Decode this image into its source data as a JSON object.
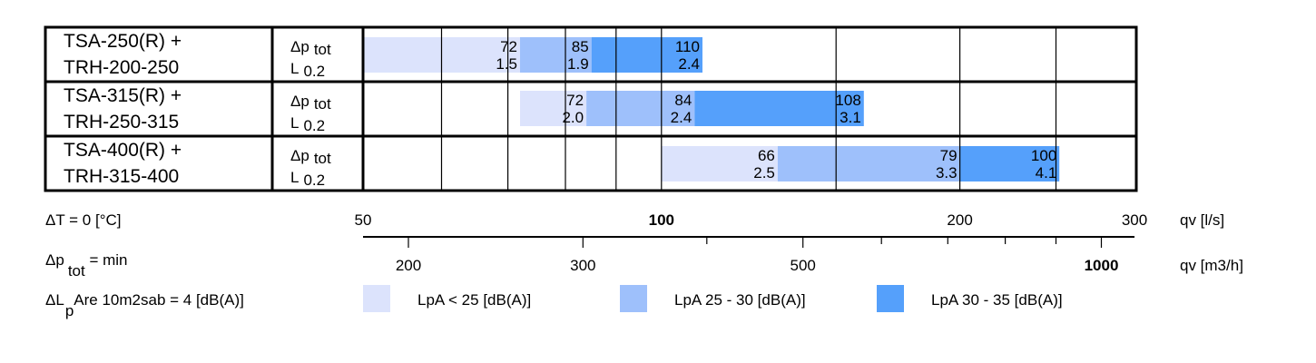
{
  "chart_data": {
    "type": "bar",
    "x_scale": "log",
    "x_range": [
      50,
      300
    ],
    "grid": true,
    "rows": [
      {
        "unit_line1": "TSA-250(R) +",
        "unit_line2": "TRH-200-250",
        "param_dp": "Δp",
        "param_dp_sub": "tot",
        "param_l": "L",
        "param_l_sub": "0.2",
        "segments": [
          {
            "level": 0,
            "from": 50,
            "to": 72,
            "dp": "72",
            "l": "1.5"
          },
          {
            "level": 1,
            "from": 72,
            "to": 85,
            "dp": "85",
            "l": "1.9"
          },
          {
            "level": 2,
            "from": 85,
            "to": 110,
            "dp": "110",
            "l": "2.4"
          }
        ]
      },
      {
        "unit_line1": "TSA-315(R) +",
        "unit_line2": "TRH-250-315",
        "param_dp": "Δp",
        "param_dp_sub": "tot",
        "param_l": "L",
        "param_l_sub": "0.2",
        "segments": [
          {
            "level": 0,
            "from": 72,
            "to": 84,
            "dp": "72",
            "l": "2.0"
          },
          {
            "level": 1,
            "from": 84,
            "to": 108,
            "dp": "84",
            "l": "2.4"
          },
          {
            "level": 2,
            "from": 108,
            "to": 160,
            "dp": "108",
            "l": "3.1"
          }
        ]
      },
      {
        "unit_line1": "TSA-400(R) +",
        "unit_line2": "TRH-315-400",
        "param_dp": "Δp",
        "param_dp_sub": "tot",
        "param_l": "L",
        "param_l_sub": "0.2",
        "segments": [
          {
            "level": 0,
            "from": 100,
            "to": 131,
            "dp": "66",
            "l": "2.5"
          },
          {
            "level": 1,
            "from": 131,
            "to": 200,
            "dp": "79",
            "l": "3.3"
          },
          {
            "level": 2,
            "from": 200,
            "to": 252,
            "dp": "100",
            "l": "4.1"
          }
        ]
      }
    ],
    "ls_axis": {
      "label": "qv [l/s]",
      "ticks": [
        {
          "v": 50,
          "label": "50",
          "bold": false
        },
        {
          "v": 100,
          "label": "100",
          "bold": true
        },
        {
          "v": 200,
          "label": "200",
          "bold": false
        },
        {
          "v": 300,
          "label": "300",
          "bold": false
        }
      ]
    },
    "m3h_axis": {
      "label": "qv [m3/h]",
      "major_ticks": [
        {
          "v": 200,
          "label": "200",
          "bold": false
        },
        {
          "v": 300,
          "label": "300",
          "bold": false
        },
        {
          "v": 500,
          "label": "500",
          "bold": false
        },
        {
          "v": 1000,
          "label": "1000",
          "bold": true
        }
      ],
      "minor_ticks": [
        400,
        600,
        700,
        800,
        900
      ]
    },
    "notes": {
      "dt_label": "ΔT = 0 [°C]",
      "dp_main": "Δp",
      "dp_sub": "tot",
      "dp_rest": " = min",
      "dl_main": "ΔL",
      "dl_sub": "p",
      "dl_rest": "Are 10m2sab = 4 [dB(A)]"
    },
    "legend": [
      {
        "label": "LpA < 25 [dB(A)]",
        "color": "#dce3fc"
      },
      {
        "label": "LpA 25 - 30 [dB(A)]",
        "color": "#9ec0fb"
      },
      {
        "label": "LpA 30 - 35 [dB(A)]",
        "color": "#55a0fb"
      }
    ],
    "level_colors": [
      "#dce3fc",
      "#9ec0fb",
      "#55a0fb"
    ]
  }
}
